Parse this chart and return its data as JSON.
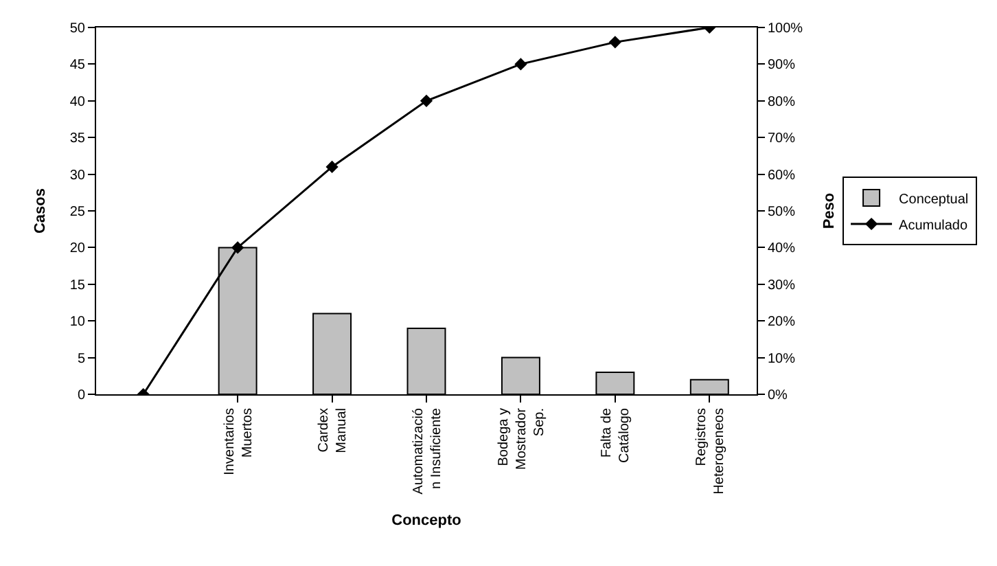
{
  "chart_data": {
    "type": "bar",
    "xlabel": "Concepto",
    "ylabel": "Casos",
    "y2label": "Peso",
    "categories": [
      null,
      "Inventarios\nMuertos",
      "Cardex\nManual",
      "Automatizació\nn Insuficiente",
      "Bodega y\nMostrador\nSep.",
      "Falta de\nCatálogo",
      "Registros\nHeterogeneos"
    ],
    "series": [
      {
        "name": "Conceptual",
        "color": "#c0c0c0",
        "values": [
          null,
          20,
          11,
          9,
          5,
          3,
          2
        ]
      },
      {
        "name": "Acumulado",
        "type": "line",
        "axis": "y2",
        "color": "#000000",
        "marker": "diamond",
        "values": [
          0,
          40,
          62,
          80,
          90,
          96,
          100
        ]
      }
    ],
    "ylim": [
      0,
      50
    ],
    "yticks": [
      0,
      5,
      10,
      15,
      20,
      25,
      30,
      35,
      40,
      45,
      50
    ],
    "y2lim": [
      0,
      100
    ],
    "y2ticks": [
      {
        "value": 0,
        "label": "0%"
      },
      {
        "value": 10,
        "label": "10%"
      },
      {
        "value": 20,
        "label": "20%"
      },
      {
        "value": 30,
        "label": "30%"
      },
      {
        "value": 40,
        "label": "40%"
      },
      {
        "value": 50,
        "label": "50%"
      },
      {
        "value": 60,
        "label": "60%"
      },
      {
        "value": 70,
        "label": "70%"
      },
      {
        "value": 80,
        "label": "80%"
      },
      {
        "value": 90,
        "label": "90%"
      },
      {
        "value": 100,
        "label": "100%"
      }
    ],
    "legend": "right"
  }
}
